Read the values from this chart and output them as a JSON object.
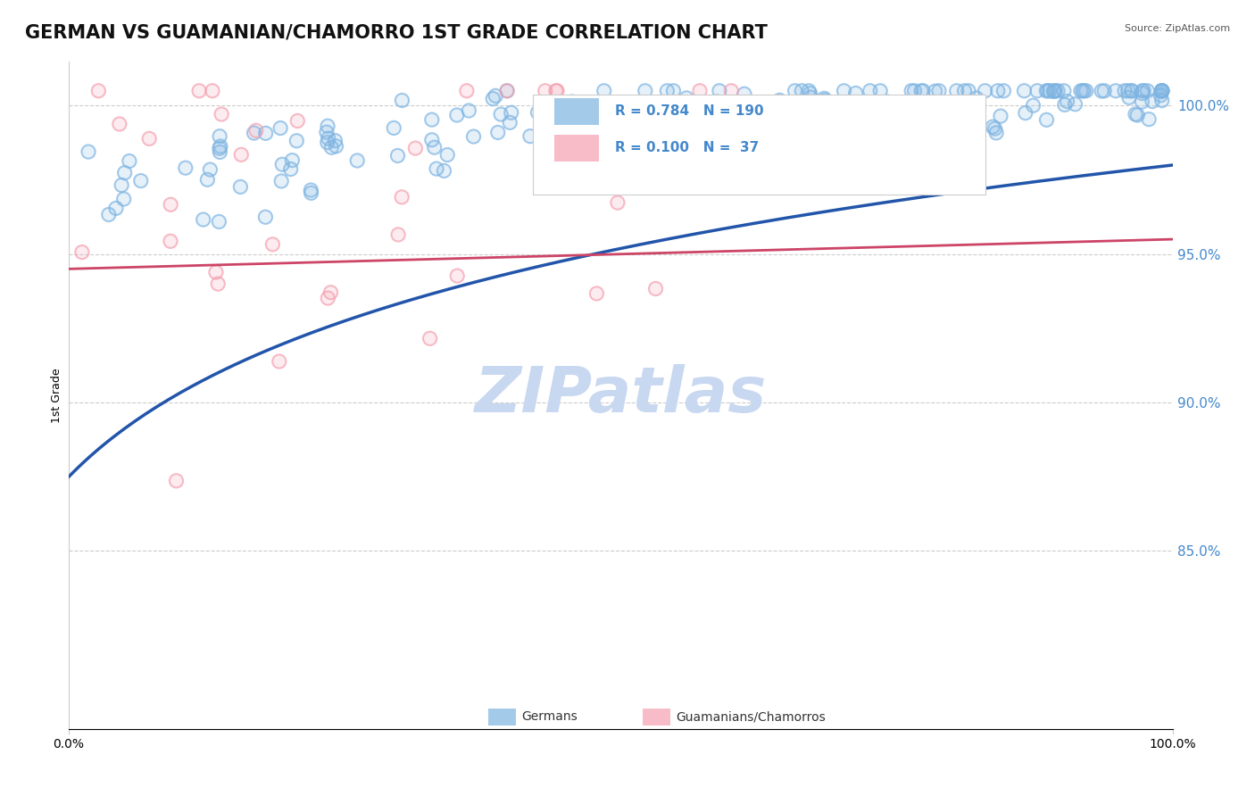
{
  "title": "GERMAN VS GUAMANIAN/CHAMORRO 1ST GRADE CORRELATION CHART",
  "source": "Source: ZipAtlas.com",
  "xlabel": "",
  "ylabel": "1st Grade",
  "right_yticks": [
    0.85,
    0.9,
    0.95,
    1.0
  ],
  "right_yticklabels": [
    "85.0%",
    "90.0%",
    "95.0%",
    "100.0%"
  ],
  "xticklabels": [
    "0.0%",
    "100.0%"
  ],
  "xticks": [
    0.0,
    1.0
  ],
  "ylim": [
    0.79,
    1.015
  ],
  "xlim": [
    0.0,
    1.0
  ],
  "blue_color": "#7eb4e2",
  "pink_color": "#f4a0b0",
  "blue_line_color": "#2255aa",
  "pink_line_color": "#cc4466",
  "legend_label_blue": "Germans",
  "legend_label_pink": "Guamanians/Chamorros",
  "watermark": "ZIPatlas",
  "watermark_color": "#c8d8f0",
  "title_fontsize": 15,
  "label_fontsize": 9,
  "tick_fontsize": 10,
  "right_tick_color": "#4488cc",
  "background_color": "#ffffff",
  "grid_color": "#cccccc",
  "blue_N": 190,
  "pink_N": 37,
  "blue_R": 0.784,
  "pink_R": 0.1
}
